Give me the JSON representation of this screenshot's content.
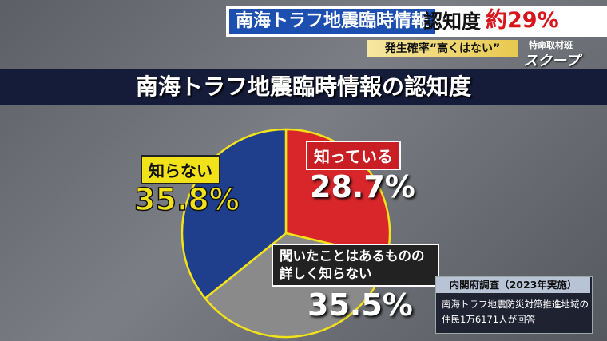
{
  "banner": {
    "topic": "南海トラフ地震臨時情報",
    "metric": "認知度",
    "figure": "約29%",
    "subline": "発生確率“高くはない”",
    "team": "特命取材班",
    "brand": "スクープ"
  },
  "chart_data": {
    "type": "pie",
    "title": "南海トラフ地震臨時情報の認知度",
    "categories": [
      "知っている",
      "聞いたことはあるものの詳しく知らない",
      "知らない"
    ],
    "values": [
      28.7,
      35.5,
      35.8
    ],
    "value_labels": [
      "28.7%",
      "35.5%",
      "35.8%"
    ],
    "colors": [
      "#d8262b",
      "#8a8a8a",
      "#1f3f8c"
    ]
  },
  "source": {
    "title": "内閣府調査（2023年実施）",
    "lines": [
      "南海トラフ地震防災対策推進地域の",
      "住民1万6171人が回答"
    ]
  }
}
